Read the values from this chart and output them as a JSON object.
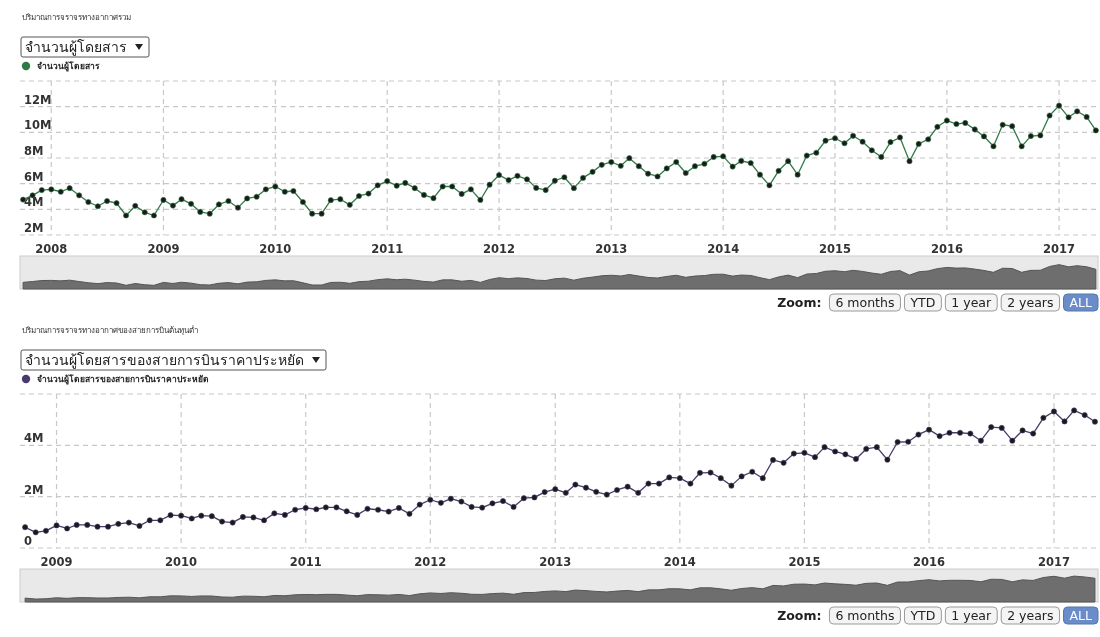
{
  "chart_data": [
    {
      "type": "line",
      "title": "ปริมาณการจราจรทางอากาศรวม",
      "subtitle": "จำนวนผู้โดยสาร",
      "legend": "top left",
      "grid": true,
      "marker": "circle",
      "line_style": "solid",
      "xlim": [
        "2007-09-21",
        "2017-05-08"
      ],
      "xticks": [
        "2008",
        "2009",
        "2010",
        "2011",
        "2012",
        "2013",
        "2014",
        "2015",
        "2016",
        "2017"
      ],
      "ylim": [
        2000000,
        14000000
      ],
      "yticks": [
        {
          "value": 2000000,
          "label": "2M"
        },
        {
          "value": 4000000,
          "label": "4M"
        },
        {
          "value": 6000000,
          "label": "6M"
        },
        {
          "value": 8000000,
          "label": "8M"
        },
        {
          "value": 10000000,
          "label": "10M"
        },
        {
          "value": 12000000,
          "label": "12M"
        },
        {
          "value": 14000000,
          "label": null
        }
      ],
      "annotations": [
        "Zoom:",
        "6 months",
        "YTD",
        "1 year",
        "2 years",
        "ALL"
      ],
      "series": [
        {
          "name": "จำนวนผู้โดยสาร",
          "color": "#2f7a45",
          "x": [
            "2007-10",
            "2007-11",
            "2007-12",
            "2008-01",
            "2008-02",
            "2008-03",
            "2008-04",
            "2008-05",
            "2008-06",
            "2008-07",
            "2008-08",
            "2008-09",
            "2008-10",
            "2008-11",
            "2008-12",
            "2009-01",
            "2009-02",
            "2009-03",
            "2009-04",
            "2009-05",
            "2009-06",
            "2009-07",
            "2009-08",
            "2009-09",
            "2009-10",
            "2009-11",
            "2009-12",
            "2010-01",
            "2010-02",
            "2010-03",
            "2010-04",
            "2010-05",
            "2010-06",
            "2010-07",
            "2010-08",
            "2010-09",
            "2010-10",
            "2010-11",
            "2010-12",
            "2011-01",
            "2011-02",
            "2011-03",
            "2011-04",
            "2011-05",
            "2011-06",
            "2011-07",
            "2011-08",
            "2011-09",
            "2011-10",
            "2011-11",
            "2011-12",
            "2012-01",
            "2012-02",
            "2012-03",
            "2012-04",
            "2012-05",
            "2012-06",
            "2012-07",
            "2012-08",
            "2012-09",
            "2012-10",
            "2012-11",
            "2012-12",
            "2013-01",
            "2013-02",
            "2013-03",
            "2013-04",
            "2013-05",
            "2013-06",
            "2013-07",
            "2013-08",
            "2013-09",
            "2013-10",
            "2013-11",
            "2013-12",
            "2014-01",
            "2014-02",
            "2014-03",
            "2014-04",
            "2014-05",
            "2014-06",
            "2014-07",
            "2014-08",
            "2014-09",
            "2014-10",
            "2014-11",
            "2014-12",
            "2015-01",
            "2015-02",
            "2015-03",
            "2015-04",
            "2015-05",
            "2015-06",
            "2015-07",
            "2015-08",
            "2015-09",
            "2015-10",
            "2015-11",
            "2015-12",
            "2016-01",
            "2016-02",
            "2016-03",
            "2016-04",
            "2016-05",
            "2016-06",
            "2016-07",
            "2016-08",
            "2016-09",
            "2016-10",
            "2016-11",
            "2016-12",
            "2017-01",
            "2017-02",
            "2017-03",
            "2017-04",
            "2017-05"
          ],
          "values": [
            4760000,
            5090000,
            5500000,
            5560000,
            5370000,
            5650000,
            5090000,
            4570000,
            4240000,
            4650000,
            4490000,
            3520000,
            4270000,
            3770000,
            3520000,
            4730000,
            4290000,
            4790000,
            4430000,
            3800000,
            3660000,
            4380000,
            4650000,
            4130000,
            4850000,
            4980000,
            5560000,
            5780000,
            5370000,
            5430000,
            4570000,
            3660000,
            3660000,
            4710000,
            4790000,
            4350000,
            5040000,
            5230000,
            5870000,
            6200000,
            5840000,
            6060000,
            5650000,
            5120000,
            4870000,
            5780000,
            5780000,
            5200000,
            5560000,
            4730000,
            5920000,
            6670000,
            6280000,
            6610000,
            6340000,
            5670000,
            5500000,
            6230000,
            6500000,
            5650000,
            6450000,
            6920000,
            7470000,
            7690000,
            7390000,
            7990000,
            7360000,
            6780000,
            6560000,
            7190000,
            7690000,
            6830000,
            7360000,
            7550000,
            8080000,
            8130000,
            7330000,
            7770000,
            7610000,
            6700000,
            5870000,
            7000000,
            7750000,
            6700000,
            8190000,
            8410000,
            9350000,
            9540000,
            9150000,
            9730000,
            9270000,
            8600000,
            8080000,
            9240000,
            9600000,
            7750000,
            9100000,
            9460000,
            10430000,
            10920000,
            10650000,
            10730000,
            10230000,
            9680000,
            8910000,
            10590000,
            10480000,
            8910000,
            9710000,
            9760000,
            11310000,
            12080000,
            11170000,
            11640000,
            11200000,
            10150000
          ]
        }
      ]
    },
    {
      "type": "line",
      "title": "ปริมาณการจราจรทางอากาศของสายการบินต้นทุนต่ำ",
      "subtitle": "จำนวนผู้โดยสารของสายการบินราคาประหยัด",
      "legend": "top left",
      "grid": true,
      "marker": "circle",
      "line_style": "solid",
      "xlim": [
        "2008-09-16",
        "2017-05-10"
      ],
      "xticks": [
        "2009",
        "2010",
        "2011",
        "2012",
        "2013",
        "2014",
        "2015",
        "2016",
        "2017"
      ],
      "ylim": [
        0,
        6000000
      ],
      "yticks": [
        0,
        {
          "value": 2000000,
          "label": "2M"
        },
        {
          "value": 4000000,
          "label": "4M"
        },
        {
          "value": 6000000,
          "label": null
        }
      ],
      "annotations": [
        "Zoom:",
        "6 months",
        "YTD",
        "1 year",
        "2 years",
        "ALL"
      ],
      "series": [
        {
          "name": "จำนวนผู้โดยสารของสายการบินราคาประหยัด",
          "color": "#4b3a6e",
          "x": [
            "2008-10",
            "2008-11",
            "2008-12",
            "2009-01",
            "2009-02",
            "2009-03",
            "2009-04",
            "2009-05",
            "2009-06",
            "2009-07",
            "2009-08",
            "2009-09",
            "2009-10",
            "2009-11",
            "2009-12",
            "2010-01",
            "2010-02",
            "2010-03",
            "2010-04",
            "2010-05",
            "2010-06",
            "2010-07",
            "2010-08",
            "2010-09",
            "2010-10",
            "2010-11",
            "2010-12",
            "2011-01",
            "2011-02",
            "2011-03",
            "2011-04",
            "2011-05",
            "2011-06",
            "2011-07",
            "2011-08",
            "2011-09",
            "2011-10",
            "2011-11",
            "2011-12",
            "2012-01",
            "2012-02",
            "2012-03",
            "2012-04",
            "2012-05",
            "2012-06",
            "2012-07",
            "2012-08",
            "2012-09",
            "2012-10",
            "2012-11",
            "2012-12",
            "2013-01",
            "2013-02",
            "2013-03",
            "2013-04",
            "2013-05",
            "2013-06",
            "2013-07",
            "2013-08",
            "2013-09",
            "2013-10",
            "2013-11",
            "2013-12",
            "2014-01",
            "2014-02",
            "2014-03",
            "2014-04",
            "2014-05",
            "2014-06",
            "2014-07",
            "2014-08",
            "2014-09",
            "2014-10",
            "2014-11",
            "2014-12",
            "2015-01",
            "2015-02",
            "2015-03",
            "2015-04",
            "2015-05",
            "2015-06",
            "2015-07",
            "2015-08",
            "2015-09",
            "2015-10",
            "2015-11",
            "2015-12",
            "2016-01",
            "2016-02",
            "2016-03",
            "2016-04",
            "2016-05",
            "2016-06",
            "2016-07",
            "2016-08",
            "2016-09",
            "2016-10",
            "2016-11",
            "2016-12",
            "2017-01",
            "2017-02",
            "2017-03",
            "2017-04",
            "2017-05"
          ],
          "values": [
            810000,
            610000,
            670000,
            880000,
            760000,
            900000,
            900000,
            830000,
            830000,
            940000,
            990000,
            860000,
            1080000,
            1080000,
            1280000,
            1260000,
            1150000,
            1260000,
            1240000,
            1030000,
            990000,
            1210000,
            1190000,
            1080000,
            1350000,
            1290000,
            1490000,
            1560000,
            1510000,
            1580000,
            1580000,
            1430000,
            1290000,
            1530000,
            1490000,
            1420000,
            1560000,
            1330000,
            1690000,
            1880000,
            1760000,
            1920000,
            1810000,
            1600000,
            1570000,
            1740000,
            1830000,
            1600000,
            1940000,
            1970000,
            2180000,
            2290000,
            2150000,
            2470000,
            2350000,
            2190000,
            2080000,
            2260000,
            2390000,
            2150000,
            2510000,
            2510000,
            2750000,
            2720000,
            2510000,
            2930000,
            2940000,
            2720000,
            2430000,
            2790000,
            2970000,
            2720000,
            3430000,
            3320000,
            3680000,
            3710000,
            3540000,
            3930000,
            3760000,
            3650000,
            3470000,
            3860000,
            3930000,
            3440000,
            4130000,
            4140000,
            4420000,
            4610000,
            4360000,
            4490000,
            4490000,
            4460000,
            4180000,
            4710000,
            4680000,
            4180000,
            4580000,
            4460000,
            5070000,
            5320000,
            4930000,
            5360000,
            5180000,
            4920000
          ]
        }
      ]
    }
  ]
}
